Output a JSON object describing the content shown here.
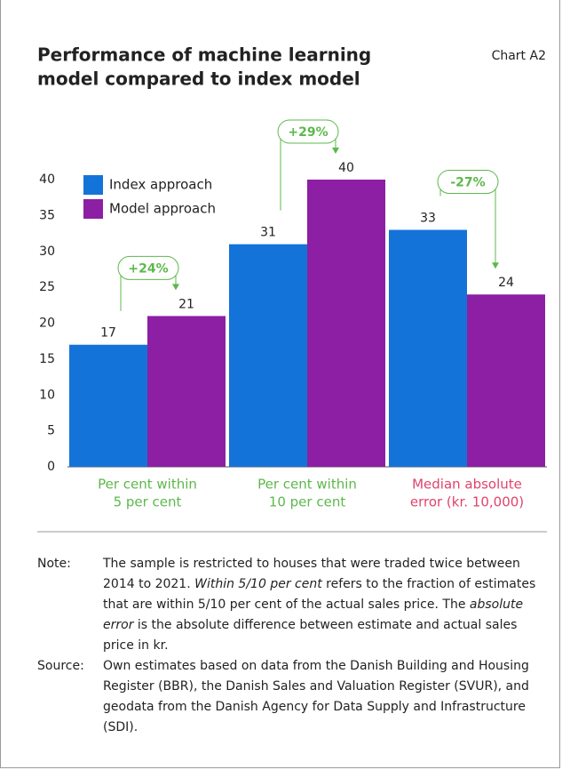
{
  "chart_data": {
    "type": "bar",
    "title": [
      "Performance of machine learning",
      "model compared to index model"
    ],
    "chart_id": "Chart A2",
    "categories": [
      [
        "Per cent within",
        "5 per cent"
      ],
      [
        "Per cent within",
        "10 per cent"
      ],
      [
        "Median absolute",
        "error (kr. 10,000)"
      ]
    ],
    "category_colors": [
      "#5db84c",
      "#5db84c",
      "#e0436c"
    ],
    "series": [
      {
        "name": "Index approach",
        "color": "#1473d8",
        "values": [
          17,
          31,
          33
        ]
      },
      {
        "name": "Model approach",
        "color": "#8c1fa3",
        "values": [
          21,
          40,
          24
        ]
      }
    ],
    "annotations": [
      "+24%",
      "+29%",
      "-27%"
    ],
    "annotation_color": "#5db84c",
    "ylim": [
      0,
      40
    ],
    "yticks": [
      0,
      5,
      10,
      15,
      20,
      25,
      30,
      35,
      40
    ],
    "legend": "upper left",
    "note_label": "Note:",
    "note": [
      {
        "text": "The sample is restricted to houses that were traded twice between 2014 to 2021. "
      },
      {
        "text": "Within 5/10 per cent",
        "italic": true
      },
      {
        "text": " refers to the fraction of estimates that are within 5/10 per cent of the actual sales price. The "
      },
      {
        "text": "absolute error",
        "italic": true
      },
      {
        "text": " is the absolute difference between estimate and actual sales price in kr."
      }
    ],
    "source_label": "Source:",
    "source": "Own estimates based on data from the Danish Building and Housing Register (BBR), the Danish Sales and Valuation Register (SVUR), and geodata from the Danish Agency for Data Supply and Infrastructure (SDI)."
  }
}
